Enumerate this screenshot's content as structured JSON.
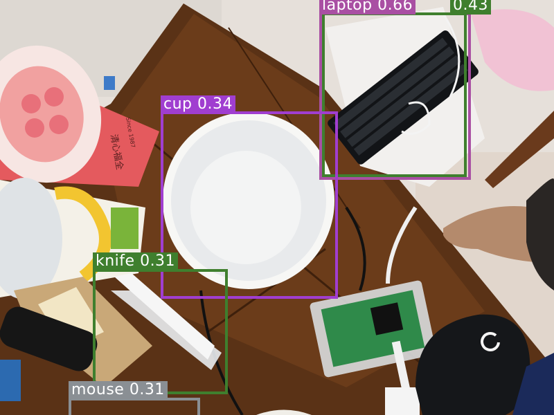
{
  "detections": [
    {
      "label": "laptop 0.66",
      "color": "#a94fa3"
    },
    {
      "label": "0.43",
      "color": "#3f7f2e"
    },
    {
      "label": "cup 0.34",
      "color": "#a03ed0"
    },
    {
      "label": "knife 0.31",
      "color": "#3f7f2e"
    },
    {
      "label": "mouse 0.31",
      "color": "#8a8f94"
    }
  ],
  "scene": {
    "cup_brand_text": "清心福全",
    "cup_sub_text": "Since 1987"
  }
}
